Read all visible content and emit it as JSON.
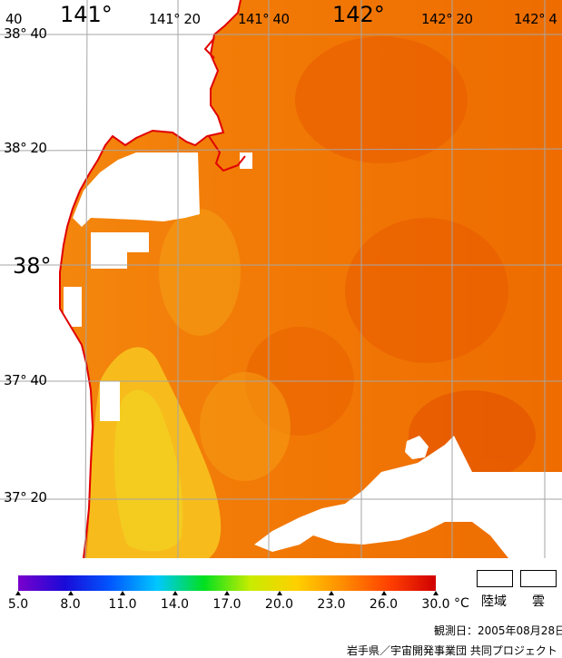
{
  "map": {
    "lat_labels": [
      {
        "deg": "38°",
        "min": "40",
        "big": false
      },
      {
        "deg": "38°",
        "min": "20",
        "big": false
      },
      {
        "deg": "38°",
        "min": "",
        "big": true
      },
      {
        "deg": "37°",
        "min": "40",
        "big": false
      },
      {
        "deg": "37°",
        "min": "20",
        "big": false
      }
    ],
    "lon_labels": [
      {
        "text": "40",
        "big": false
      },
      {
        "text": "141°",
        "big": true
      },
      {
        "text": "141°  20",
        "big": false
      },
      {
        "text": "141°  40",
        "big": false
      },
      {
        "text": "142°",
        "big": true
      },
      {
        "text": "142°  20",
        "big": false
      },
      {
        "text": "142°  4",
        "big": false
      }
    ],
    "colors": {
      "land": "#ffffff",
      "coastline": "#e00000",
      "grid": "#a6a6a6",
      "sea_offshore": "#f07000",
      "sea_mid": "#f49010",
      "sea_coastal": "#f8b818",
      "sea_warm": "#e85c00"
    }
  },
  "colorbar": {
    "unit": "°C",
    "ticks": [
      "5.0",
      "8.0",
      "11.0",
      "14.0",
      "17.0",
      "20.0",
      "23.0",
      "26.0",
      "30.0"
    ],
    "colors": [
      "#7a00cc",
      "#1a0ad8",
      "#0058ff",
      "#00c8ff",
      "#00e020",
      "#c8ec00",
      "#ffd000",
      "#ff8c00",
      "#ff4000",
      "#d00000"
    ]
  },
  "legend": {
    "land": "陸域",
    "cloud": "雲"
  },
  "footer": {
    "date": "観測日：2005年08月28日",
    "credit": "岩手県／宇宙開発事業団 共同プロジェクト"
  }
}
